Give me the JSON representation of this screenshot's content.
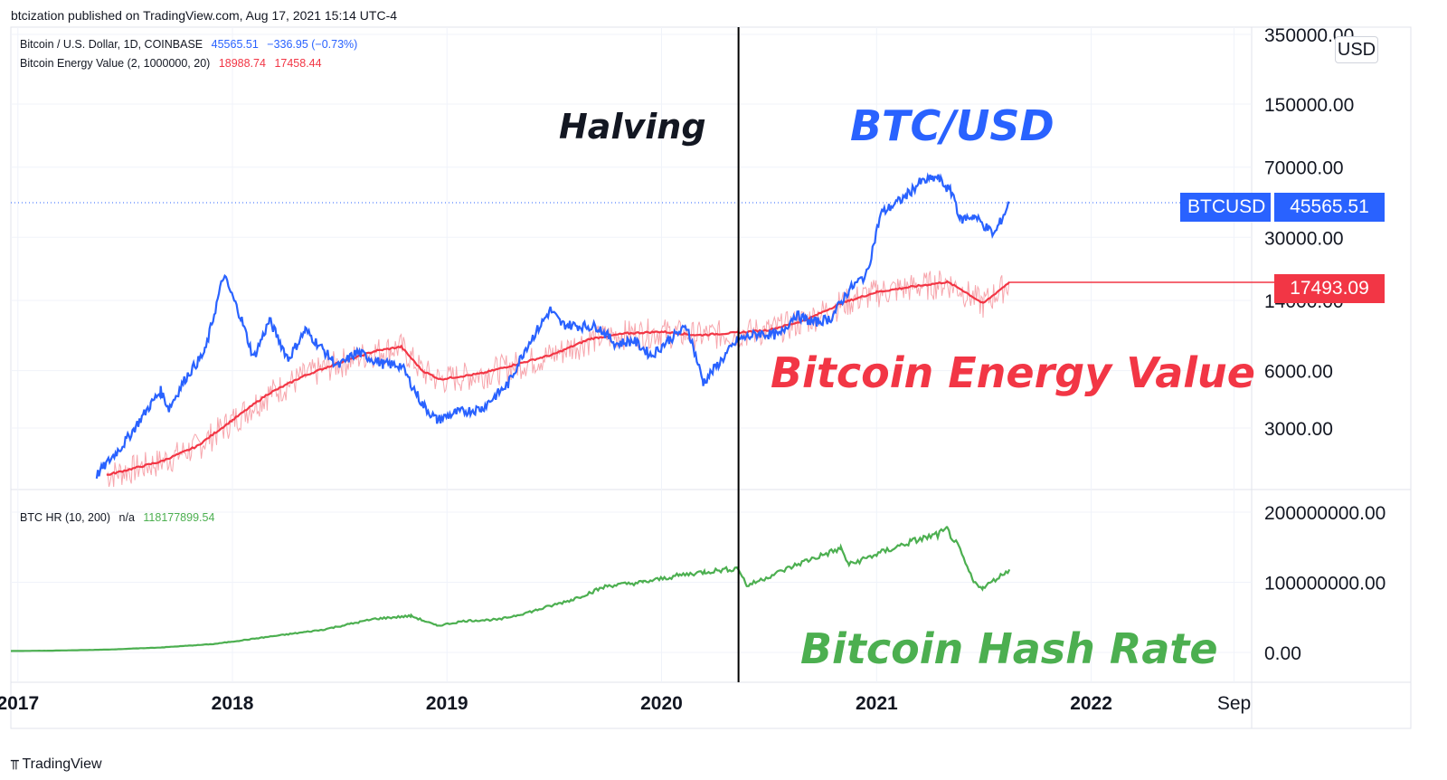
{
  "header": {
    "published": "btcization published on TradingView.com, Aug 17, 2021 15:14 UTC-4"
  },
  "legend": {
    "btc": {
      "name": "Bitcoin / U.S. Dollar, 1D, COINBASE",
      "value": "45565.51",
      "change": "−336.95 (−0.73%)"
    },
    "bev": {
      "name": "Bitcoin Energy Value (2, 1000000, 20)",
      "value1": "18988.74",
      "value2": "17458.44"
    },
    "hr": {
      "name": "BTC HR (10, 200)",
      "na": "n/a",
      "value": "118177899.54"
    }
  },
  "price_scale": {
    "currency": "USD",
    "ticks": [
      "350000.00",
      "150000.00",
      "70000.00",
      "30000.00",
      "14000.00",
      "6000.00",
      "3000.00"
    ]
  },
  "hash_scale": {
    "ticks": [
      "200000000.00",
      "100000000.00",
      "0.00"
    ]
  },
  "time_axis": {
    "ticks": [
      "2017",
      "2018",
      "2019",
      "2020",
      "2021",
      "2022",
      "Sep"
    ]
  },
  "tags": {
    "ticker": "BTCUSD",
    "price": "45565.51",
    "bev": "17493.09"
  },
  "annotations": {
    "halving": "Halving",
    "btcusd": "BTC/USD",
    "bev": "Bitcoin Energy Value",
    "hash_rate": "Bitcoin Hash Rate"
  },
  "footer": {
    "logo_text": "TradingView"
  },
  "colors": {
    "btc": "#2962ff",
    "bev": "#f23645",
    "bev_light": "#f7a6ad",
    "hash": "#4caf50",
    "grid": "#f0f3fa",
    "border": "#e0e3eb",
    "halving_line": "#000000"
  },
  "chart_data": [
    {
      "type": "line",
      "title": "",
      "yscale": "log",
      "ylim": [
        1500,
        350000
      ],
      "xlim": [
        "2016-12-20",
        "2022-10-01"
      ],
      "halving_date": "2020-05-11",
      "series": [
        {
          "name": "Bitcoin / U.S. Dollar, 1D, COINBASE",
          "x": [
            "2017-05-15",
            "2017-07-01",
            "2017-08-15",
            "2017-09-01",
            "2017-09-15",
            "2017-10-15",
            "2017-11-15",
            "2017-12-17",
            "2018-01-15",
            "2018-02-06",
            "2018-03-05",
            "2018-04-06",
            "2018-05-05",
            "2018-06-30",
            "2018-08-01",
            "2018-09-15",
            "2018-10-15",
            "2018-11-20",
            "2018-12-15",
            "2019-01-15",
            "2019-03-01",
            "2019-04-15",
            "2019-05-15",
            "2019-06-26",
            "2019-07-15",
            "2019-08-15",
            "2019-09-15",
            "2019-10-15",
            "2019-11-15",
            "2019-12-15",
            "2020-01-15",
            "2020-02-14",
            "2020-03-12",
            "2020-04-15",
            "2020-05-10",
            "2020-06-15",
            "2020-07-20",
            "2020-08-15",
            "2020-09-15",
            "2020-10-15",
            "2020-11-15",
            "2020-12-15",
            "2021-01-08",
            "2021-02-15",
            "2021-03-15",
            "2021-04-14",
            "2021-05-12",
            "2021-05-23",
            "2021-06-15",
            "2021-07-20",
            "2021-08-15"
          ],
          "y": [
            1700,
            2500,
            4000,
            4700,
            3800,
            5600,
            7500,
            19000,
            11500,
            7000,
            11000,
            6900,
            9800,
            6300,
            7500,
            6500,
            6400,
            4000,
            3300,
            3600,
            3800,
            5100,
            7900,
            12500,
            10500,
            10300,
            10200,
            8300,
            8600,
            7200,
            8800,
            10200,
            5200,
            7000,
            8700,
            9400,
            9200,
            11800,
            10700,
            11300,
            15900,
            19200,
            40000,
            48000,
            58000,
            62000,
            50000,
            37000,
            39000,
            31000,
            45565
          ]
        },
        {
          "name": "Bitcoin Energy Value (2, 1000000, 20)",
          "x": [
            "2017-06-01",
            "2017-09-01",
            "2017-11-01",
            "2018-01-01",
            "2018-03-01",
            "2018-05-01",
            "2018-07-01",
            "2018-09-01",
            "2018-10-15",
            "2018-11-20",
            "2018-12-20",
            "2019-03-01",
            "2019-05-01",
            "2019-07-01",
            "2019-09-01",
            "2019-11-01",
            "2020-01-01",
            "2020-03-01",
            "2020-05-11",
            "2020-07-01",
            "2020-09-01",
            "2020-11-01",
            "2021-01-01",
            "2021-03-01",
            "2021-05-01",
            "2021-05-25",
            "2021-07-01",
            "2021-08-15"
          ],
          "y": [
            1700,
            2000,
            2400,
            3300,
            4500,
            5600,
            6600,
            7600,
            8000,
            6000,
            5400,
            5800,
            6500,
            7300,
            8800,
            9400,
            9600,
            9200,
            9500,
            9800,
            11000,
            13500,
            15500,
            16500,
            17500,
            16000,
            13500,
            17493
          ]
        },
        {
          "name": "BTC HR (10, 200)",
          "x": [
            "2016-12-20",
            "2017-03-01",
            "2017-06-01",
            "2017-09-01",
            "2017-12-01",
            "2018-03-01",
            "2018-06-01",
            "2018-09-01",
            "2018-11-01",
            "2018-12-15",
            "2019-02-01",
            "2019-04-01",
            "2019-06-01",
            "2019-08-01",
            "2019-10-01",
            "2019-12-01",
            "2020-02-01",
            "2020-03-15",
            "2020-05-11",
            "2020-05-25",
            "2020-07-01",
            "2020-09-01",
            "2020-11-01",
            "2020-11-15",
            "2021-01-01",
            "2021-03-01",
            "2021-04-15",
            "2021-05-01",
            "2021-05-20",
            "2021-06-15",
            "2021-07-01",
            "2021-08-15"
          ],
          "y": [
            2000000,
            2500000,
            4000000,
            7000000,
            12000000,
            22000000,
            32000000,
            48000000,
            52000000,
            38000000,
            45000000,
            47000000,
            60000000,
            75000000,
            95000000,
            100000000,
            110000000,
            115000000,
            120000000,
            95000000,
            108000000,
            130000000,
            148000000,
            125000000,
            140000000,
            158000000,
            168000000,
            175000000,
            150000000,
            100000000,
            92000000,
            118177899.54
          ]
        }
      ]
    }
  ]
}
